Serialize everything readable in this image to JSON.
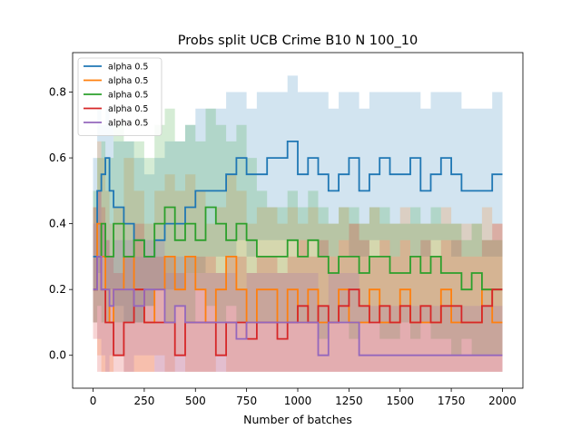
{
  "chart_data": {
    "type": "line",
    "title": "Probs split UCB Crime B10 N 100_10",
    "xlabel": "Number of batches",
    "ylabel": "",
    "xlim": [
      -100,
      2100
    ],
    "ylim": [
      -0.1,
      0.92
    ],
    "xticks": [
      0,
      250,
      500,
      750,
      1000,
      1250,
      1500,
      1750,
      2000
    ],
    "xtick_labels": [
      "0",
      "250",
      "500",
      "750",
      "1000",
      "1250",
      "1500",
      "1750",
      "2000"
    ],
    "yticks": [
      0.0,
      0.2,
      0.4,
      0.6,
      0.8
    ],
    "ytick_labels": [
      "0.0",
      "0.2",
      "0.4",
      "0.6",
      "0.8"
    ],
    "grid": false,
    "legend_position": "top-left",
    "series": [
      {
        "name": "alpha 0.5",
        "color": "#1f77b4",
        "x": [
          0,
          20,
          40,
          60,
          80,
          100,
          150,
          200,
          250,
          300,
          350,
          400,
          450,
          500,
          550,
          600,
          650,
          700,
          750,
          800,
          850,
          900,
          950,
          1000,
          1050,
          1100,
          1150,
          1200,
          1250,
          1300,
          1350,
          1400,
          1450,
          1500,
          1550,
          1600,
          1650,
          1700,
          1750,
          1800,
          1850,
          1900,
          1950,
          2000
        ],
        "values": [
          0.3,
          0.5,
          0.55,
          0.6,
          0.5,
          0.45,
          0.4,
          0.35,
          0.3,
          0.35,
          0.4,
          0.4,
          0.45,
          0.5,
          0.5,
          0.5,
          0.55,
          0.6,
          0.55,
          0.55,
          0.6,
          0.6,
          0.65,
          0.55,
          0.6,
          0.55,
          0.5,
          0.55,
          0.6,
          0.5,
          0.55,
          0.6,
          0.55,
          0.55,
          0.6,
          0.5,
          0.55,
          0.6,
          0.55,
          0.5,
          0.5,
          0.5,
          0.55,
          0.55
        ],
        "band_low": [
          0.0,
          0.2,
          0.25,
          0.3,
          0.2,
          0.2,
          0.15,
          0.1,
          0.1,
          0.15,
          0.2,
          0.2,
          0.2,
          0.25,
          0.25,
          0.3,
          0.3,
          0.3,
          0.35,
          0.3,
          0.35,
          0.35,
          0.35,
          0.35,
          0.35,
          0.35,
          0.3,
          0.3,
          0.35,
          0.3,
          0.3,
          0.35,
          0.35,
          0.3,
          0.35,
          0.3,
          0.3,
          0.35,
          0.35,
          0.3,
          0.3,
          0.3,
          0.3,
          0.3
        ],
        "band_high": [
          0.6,
          0.75,
          0.7,
          0.75,
          0.7,
          0.65,
          0.65,
          0.6,
          0.55,
          0.6,
          0.65,
          0.65,
          0.7,
          0.75,
          0.75,
          0.75,
          0.8,
          0.8,
          0.75,
          0.8,
          0.8,
          0.8,
          0.85,
          0.8,
          0.8,
          0.8,
          0.75,
          0.8,
          0.8,
          0.75,
          0.8,
          0.8,
          0.8,
          0.8,
          0.8,
          0.75,
          0.8,
          0.8,
          0.8,
          0.75,
          0.75,
          0.75,
          0.8,
          0.8
        ]
      },
      {
        "name": "alpha 0.5",
        "color": "#ff7f0e",
        "x": [
          0,
          20,
          40,
          60,
          80,
          100,
          150,
          200,
          250,
          300,
          350,
          400,
          450,
          500,
          550,
          600,
          650,
          700,
          750,
          800,
          850,
          900,
          950,
          1000,
          1050,
          1100,
          1150,
          1200,
          1250,
          1300,
          1350,
          1400,
          1450,
          1500,
          1550,
          1600,
          1650,
          1700,
          1750,
          1800,
          1850,
          1900,
          1950,
          2000
        ],
        "values": [
          0.2,
          0.4,
          0.3,
          0.2,
          0.1,
          0.2,
          0.3,
          0.2,
          0.1,
          0.2,
          0.3,
          0.2,
          0.3,
          0.2,
          0.1,
          0.2,
          0.3,
          0.2,
          0.1,
          0.2,
          0.2,
          0.1,
          0.2,
          0.1,
          0.2,
          0.1,
          0.1,
          0.2,
          0.1,
          0.1,
          0.2,
          0.1,
          0.1,
          0.2,
          0.1,
          0.1,
          0.1,
          0.2,
          0.1,
          0.1,
          0.1,
          0.2,
          0.1,
          0.1
        ],
        "band_low": [
          -0.05,
          0.1,
          0.0,
          -0.05,
          -0.05,
          -0.05,
          0.0,
          -0.05,
          -0.05,
          -0.05,
          0.0,
          -0.05,
          0.0,
          -0.05,
          -0.05,
          -0.05,
          0.0,
          -0.05,
          -0.05,
          -0.05,
          -0.05,
          -0.05,
          -0.05,
          -0.05,
          -0.05,
          -0.05,
          -0.05,
          -0.05,
          -0.05,
          -0.05,
          -0.05,
          -0.05,
          -0.05,
          -0.05,
          -0.05,
          -0.05,
          -0.05,
          -0.05,
          -0.05,
          -0.05,
          -0.05,
          -0.05,
          -0.05,
          -0.05
        ],
        "band_high": [
          0.45,
          0.65,
          0.6,
          0.5,
          0.4,
          0.45,
          0.6,
          0.5,
          0.4,
          0.5,
          0.55,
          0.5,
          0.55,
          0.5,
          0.4,
          0.45,
          0.55,
          0.5,
          0.4,
          0.45,
          0.45,
          0.4,
          0.45,
          0.4,
          0.45,
          0.4,
          0.4,
          0.45,
          0.4,
          0.4,
          0.45,
          0.4,
          0.4,
          0.45,
          0.4,
          0.4,
          0.4,
          0.45,
          0.4,
          0.4,
          0.4,
          0.45,
          0.4,
          0.4
        ]
      },
      {
        "name": "alpha 0.5",
        "color": "#2ca02c",
        "x": [
          0,
          20,
          40,
          60,
          80,
          100,
          150,
          200,
          250,
          300,
          350,
          400,
          450,
          500,
          550,
          600,
          650,
          700,
          750,
          800,
          850,
          900,
          950,
          1000,
          1050,
          1100,
          1150,
          1200,
          1250,
          1300,
          1350,
          1400,
          1450,
          1500,
          1550,
          1600,
          1650,
          1700,
          1750,
          1800,
          1850,
          1900,
          1950,
          2000
        ],
        "values": [
          0.2,
          0.3,
          0.4,
          0.3,
          0.3,
          0.4,
          0.3,
          0.35,
          0.3,
          0.4,
          0.45,
          0.35,
          0.4,
          0.35,
          0.45,
          0.4,
          0.35,
          0.4,
          0.35,
          0.3,
          0.3,
          0.3,
          0.35,
          0.3,
          0.35,
          0.3,
          0.25,
          0.3,
          0.3,
          0.25,
          0.3,
          0.3,
          0.25,
          0.25,
          0.3,
          0.25,
          0.3,
          0.25,
          0.25,
          0.2,
          0.25,
          0.2,
          0.2,
          0.2
        ],
        "band_low": [
          0.0,
          0.1,
          0.15,
          0.1,
          0.1,
          0.15,
          0.1,
          0.1,
          0.1,
          0.15,
          0.2,
          0.1,
          0.15,
          0.1,
          0.2,
          0.15,
          0.1,
          0.15,
          0.1,
          0.1,
          0.1,
          0.1,
          0.1,
          0.1,
          0.1,
          0.1,
          0.05,
          0.1,
          0.1,
          0.05,
          0.1,
          0.1,
          0.05,
          0.05,
          0.1,
          0.05,
          0.1,
          0.05,
          0.05,
          0.0,
          0.05,
          0.0,
          0.0,
          0.0
        ],
        "band_high": [
          0.5,
          0.6,
          0.65,
          0.6,
          0.6,
          0.7,
          0.65,
          0.65,
          0.6,
          0.7,
          0.75,
          0.65,
          0.7,
          0.65,
          0.75,
          0.7,
          0.65,
          0.7,
          0.6,
          0.5,
          0.45,
          0.45,
          0.5,
          0.45,
          0.5,
          0.45,
          0.4,
          0.45,
          0.45,
          0.4,
          0.45,
          0.45,
          0.4,
          0.4,
          0.45,
          0.4,
          0.45,
          0.4,
          0.4,
          0.35,
          0.4,
          0.35,
          0.35,
          0.35
        ]
      },
      {
        "name": "alpha 0.5",
        "color": "#d62728",
        "x": [
          0,
          20,
          40,
          60,
          80,
          100,
          150,
          200,
          250,
          300,
          350,
          400,
          450,
          500,
          550,
          600,
          650,
          700,
          750,
          800,
          850,
          900,
          950,
          1000,
          1050,
          1100,
          1150,
          1200,
          1250,
          1300,
          1350,
          1400,
          1450,
          1500,
          1550,
          1600,
          1650,
          1700,
          1750,
          1800,
          1850,
          1900,
          1950,
          2000
        ],
        "values": [
          0.2,
          0.3,
          0.2,
          0.1,
          0.1,
          0.0,
          0.1,
          0.2,
          0.1,
          0.1,
          0.1,
          0.0,
          0.1,
          0.1,
          0.1,
          0.0,
          0.1,
          0.1,
          0.05,
          0.1,
          0.1,
          0.05,
          0.1,
          0.15,
          0.1,
          0.15,
          0.1,
          0.15,
          0.2,
          0.15,
          0.1,
          0.15,
          0.1,
          0.15,
          0.1,
          0.15,
          0.1,
          0.15,
          0.15,
          0.1,
          0.1,
          0.15,
          0.2,
          0.2
        ],
        "band_low": [
          -0.05,
          0.05,
          -0.05,
          -0.05,
          -0.05,
          -0.05,
          -0.05,
          -0.05,
          -0.05,
          -0.05,
          -0.05,
          -0.05,
          -0.05,
          -0.05,
          -0.05,
          -0.05,
          -0.05,
          -0.05,
          -0.05,
          -0.05,
          -0.05,
          -0.05,
          -0.05,
          -0.05,
          -0.05,
          -0.05,
          -0.05,
          -0.05,
          -0.05,
          -0.05,
          -0.05,
          -0.05,
          -0.05,
          -0.05,
          -0.05,
          -0.05,
          -0.05,
          -0.05,
          -0.05,
          -0.05,
          -0.05,
          -0.05,
          -0.05,
          -0.05
        ],
        "band_high": [
          0.45,
          0.5,
          0.45,
          0.35,
          0.3,
          0.25,
          0.3,
          0.4,
          0.3,
          0.3,
          0.3,
          0.25,
          0.3,
          0.3,
          0.3,
          0.25,
          0.3,
          0.3,
          0.25,
          0.3,
          0.3,
          0.25,
          0.3,
          0.35,
          0.3,
          0.35,
          0.3,
          0.35,
          0.4,
          0.35,
          0.3,
          0.35,
          0.3,
          0.35,
          0.3,
          0.35,
          0.3,
          0.35,
          0.35,
          0.3,
          0.3,
          0.35,
          0.4,
          0.4
        ]
      },
      {
        "name": "alpha 0.5",
        "color": "#9467bd",
        "x": [
          0,
          20,
          40,
          60,
          80,
          100,
          150,
          200,
          250,
          300,
          350,
          400,
          450,
          500,
          550,
          600,
          650,
          700,
          750,
          800,
          850,
          900,
          950,
          1000,
          1050,
          1100,
          1150,
          1200,
          1250,
          1300,
          1350,
          1400,
          1450,
          1500,
          1550,
          1600,
          1650,
          1700,
          1750,
          1800,
          1850,
          1900,
          1950,
          2000
        ],
        "values": [
          0.2,
          0.3,
          0.2,
          0.2,
          0.15,
          0.2,
          0.2,
          0.15,
          0.2,
          0.2,
          0.1,
          0.15,
          0.1,
          0.1,
          0.1,
          0.1,
          0.1,
          0.05,
          0.1,
          0.1,
          0.1,
          0.1,
          0.1,
          0.1,
          0.1,
          0.0,
          0.1,
          0.1,
          0.1,
          0.0,
          0.0,
          0.0,
          0.0,
          0.0,
          0.0,
          0.0,
          0.0,
          0.0,
          0.0,
          0.0,
          0.0,
          0.0,
          0.0,
          0.0
        ],
        "band_low": [
          0.0,
          0.1,
          0.05,
          0.0,
          -0.05,
          0.0,
          0.0,
          -0.05,
          0.0,
          0.0,
          -0.05,
          -0.05,
          -0.05,
          -0.05,
          -0.05,
          -0.05,
          -0.05,
          -0.05,
          -0.05,
          -0.05,
          -0.05,
          -0.05,
          -0.05,
          -0.05,
          -0.05,
          -0.05,
          -0.05,
          -0.05,
          -0.05,
          -0.05,
          -0.05,
          -0.05,
          -0.05,
          -0.05,
          -0.05,
          -0.05,
          -0.05,
          -0.05,
          -0.05,
          -0.05,
          -0.05,
          -0.05,
          -0.05,
          -0.05
        ],
        "band_high": [
          0.4,
          0.5,
          0.4,
          0.35,
          0.3,
          0.35,
          0.35,
          0.3,
          0.35,
          0.35,
          0.25,
          0.3,
          0.25,
          0.25,
          0.25,
          0.25,
          0.25,
          0.2,
          0.25,
          0.25,
          0.25,
          0.25,
          0.25,
          0.25,
          0.25,
          0.15,
          0.25,
          0.25,
          0.25,
          0.15,
          0.15,
          0.15,
          0.15,
          0.15,
          0.15,
          0.15,
          0.15,
          0.15,
          0.15,
          0.15,
          0.15,
          0.15,
          0.15,
          0.15
        ]
      }
    ]
  }
}
